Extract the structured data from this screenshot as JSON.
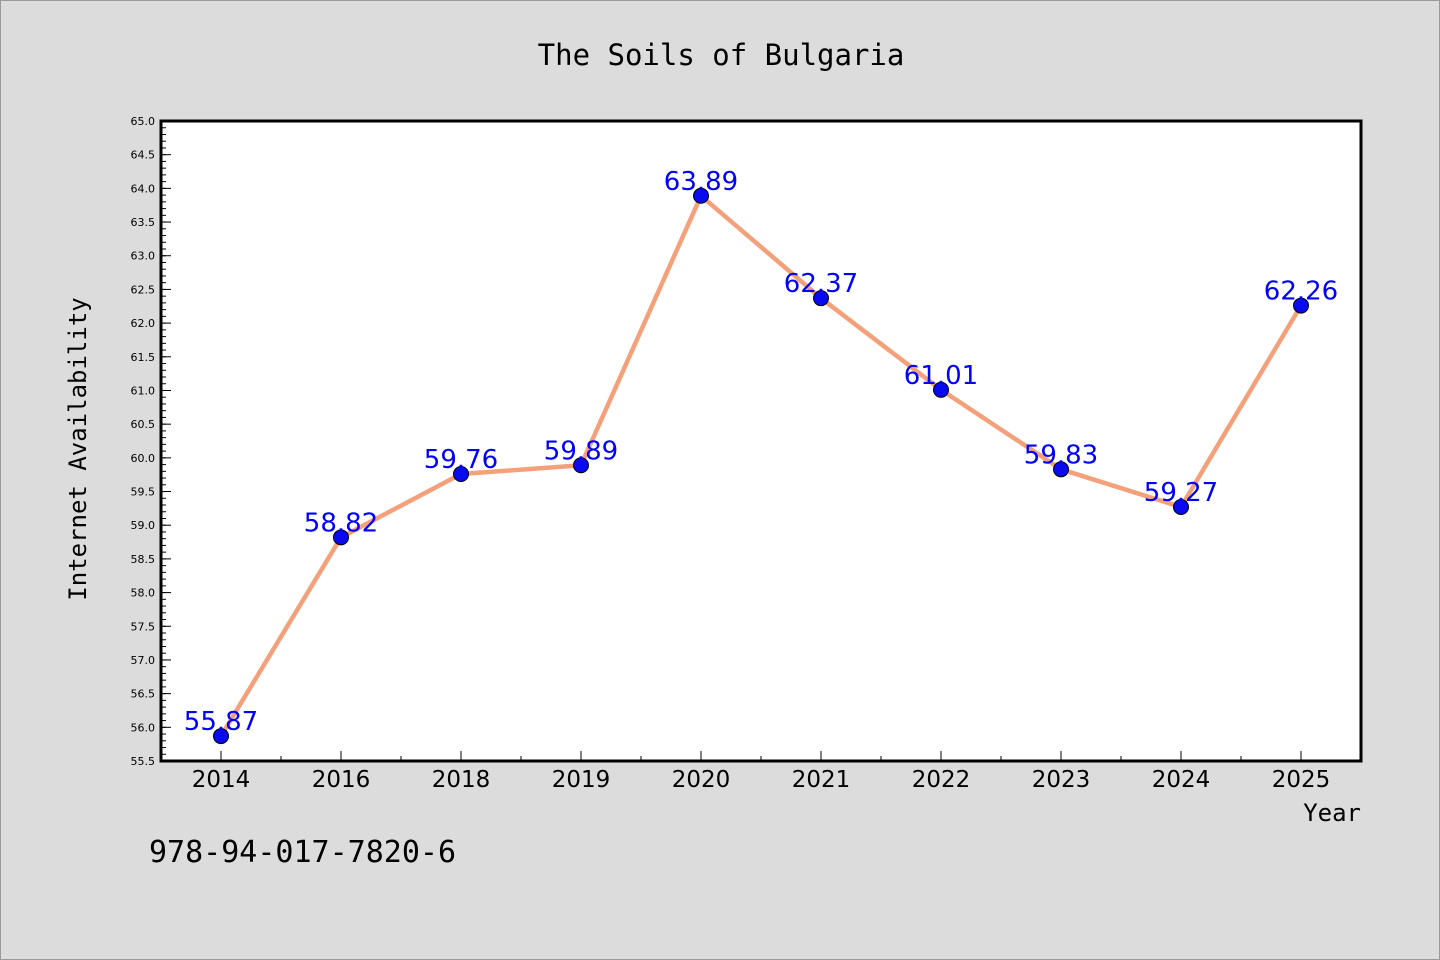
{
  "chart_data": {
    "type": "line",
    "title": "The Soils of Bulgaria",
    "xlabel": "Year",
    "ylabel": "Internet Availability",
    "categories": [
      "2014",
      "2016",
      "2018",
      "2019",
      "2020",
      "2021",
      "2022",
      "2023",
      "2024",
      "2025"
    ],
    "series": [
      {
        "values": [
          55.87,
          58.82,
          59.76,
          59.89,
          63.89,
          62.37,
          61.01,
          59.83,
          59.27,
          62.26
        ],
        "labels": [
          "55.87",
          "58.82",
          "59.76",
          "59.89",
          "63.89",
          "62.37",
          "61.01",
          "59.83",
          "59.27",
          "62.26"
        ],
        "line_color": "#f4a07a",
        "marker_color": "#0a0af0",
        "label_color": "#0000ff"
      }
    ],
    "ylim": [
      55.5,
      65.0
    ],
    "yticks": [
      "55.5",
      "56.0",
      "56.5",
      "57.0",
      "57.5",
      "58.0",
      "58.5",
      "59.0",
      "59.5",
      "60.0",
      "60.5",
      "61.0",
      "61.5",
      "62.0",
      "62.5",
      "63.0",
      "63.5",
      "64.0",
      "64.5",
      "65.0"
    ],
    "grid": false,
    "legend": "none"
  },
  "footer": {
    "isbn": "978-94-017-7820-6"
  }
}
